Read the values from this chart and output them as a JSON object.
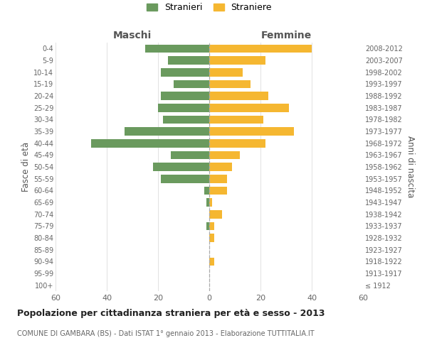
{
  "age_groups": [
    "100+",
    "95-99",
    "90-94",
    "85-89",
    "80-84",
    "75-79",
    "70-74",
    "65-69",
    "60-64",
    "55-59",
    "50-54",
    "45-49",
    "40-44",
    "35-39",
    "30-34",
    "25-29",
    "20-24",
    "15-19",
    "10-14",
    "5-9",
    "0-4"
  ],
  "birth_years": [
    "≤ 1912",
    "1913-1917",
    "1918-1922",
    "1923-1927",
    "1928-1932",
    "1933-1937",
    "1938-1942",
    "1943-1947",
    "1948-1952",
    "1953-1957",
    "1958-1962",
    "1963-1967",
    "1968-1972",
    "1973-1977",
    "1978-1982",
    "1983-1987",
    "1988-1992",
    "1993-1997",
    "1998-2002",
    "2003-2007",
    "2008-2012"
  ],
  "maschi": [
    0,
    0,
    0,
    0,
    0,
    1,
    0,
    1,
    2,
    19,
    22,
    15,
    46,
    33,
    18,
    20,
    19,
    14,
    19,
    16,
    25
  ],
  "femmine": [
    0,
    0,
    2,
    0,
    2,
    2,
    5,
    1,
    7,
    7,
    9,
    12,
    22,
    33,
    21,
    31,
    23,
    16,
    13,
    22,
    40
  ],
  "color_maschi": "#6a9a5e",
  "color_femmine": "#f5b731",
  "title": "Popolazione per cittadinanza straniera per età e sesso - 2013",
  "subtitle": "COMUNE DI GAMBARA (BS) - Dati ISTAT 1° gennaio 2013 - Elaborazione TUTTITALIA.IT",
  "xlabel_left": "Maschi",
  "xlabel_right": "Femmine",
  "ylabel_left": "Fasce di età",
  "ylabel_right": "Anni di nascita",
  "xlim": 60,
  "legend_stranieri": "Stranieri",
  "legend_straniere": "Straniere",
  "bg_color": "#ffffff",
  "grid_color": "#dddddd"
}
